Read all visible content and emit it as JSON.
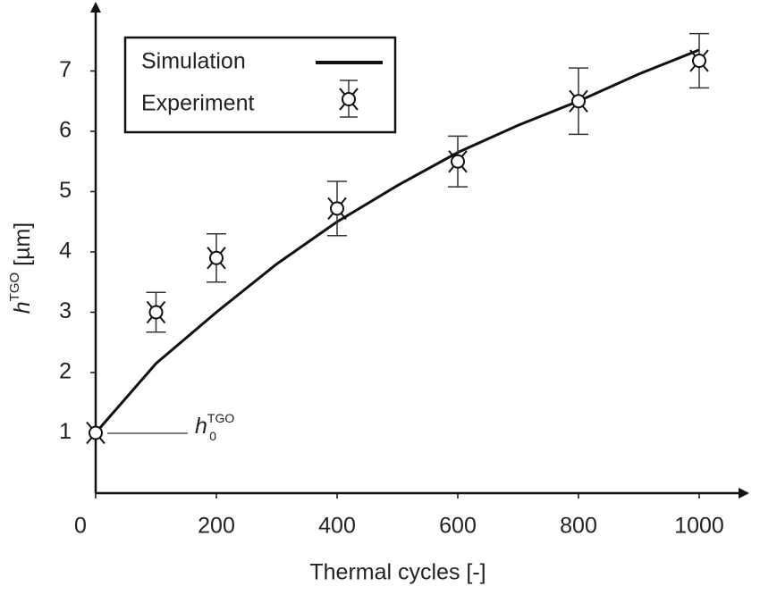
{
  "chart_data": {
    "type": "line",
    "xlabel": "Thermal cycles [-]",
    "ylabel": {
      "base": "h",
      "sup": "TGO",
      "unit": " [µm]"
    },
    "annotation": {
      "base": "h",
      "sup": "TGO",
      "sub": "0"
    },
    "xlim": [
      0,
      1080
    ],
    "ylim": [
      0,
      8.05
    ],
    "xticks": [
      0,
      200,
      400,
      600,
      800,
      1000
    ],
    "yticks": [
      1,
      2,
      3,
      4,
      5,
      6,
      7
    ],
    "series": [
      {
        "name": "Simulation",
        "color": "#111111",
        "style": "line",
        "x": [
          0,
          100,
          200,
          300,
          400,
          500,
          600,
          700,
          800,
          900,
          1000
        ],
        "values": [
          1,
          2.15,
          3.0,
          3.8,
          4.5,
          5.1,
          5.65,
          6.1,
          6.5,
          6.95,
          7.35
        ]
      },
      {
        "name": "Experiment",
        "color": "#111111",
        "style": "marker",
        "x": [
          0,
          100,
          200,
          400,
          600,
          800,
          1000
        ],
        "values": [
          1,
          3.0,
          3.9,
          4.72,
          5.5,
          6.5,
          7.17
        ],
        "errors": [
          null,
          0.33,
          0.4,
          0.45,
          0.42,
          0.55,
          0.45
        ]
      }
    ]
  }
}
